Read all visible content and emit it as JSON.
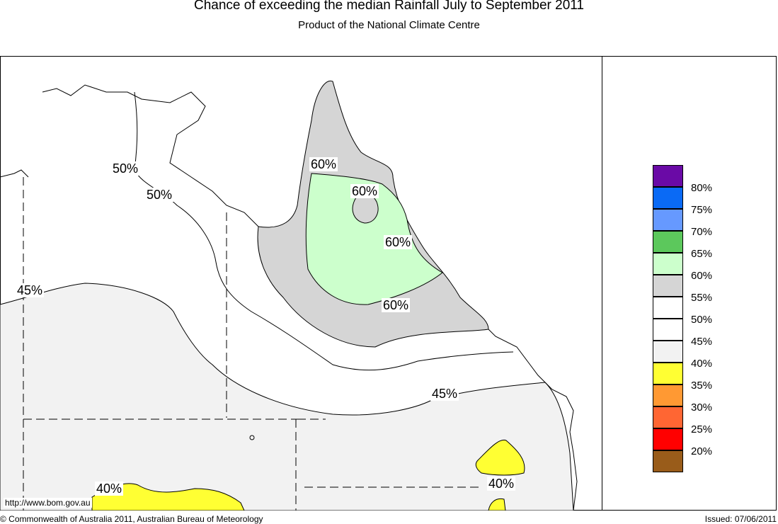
{
  "title": "Chance of exceeding the median Rainfall July to September 2011",
  "subtitle": "Product of the National Climate Centre",
  "url": "http://www.bom.gov.au",
  "copyright": "© Commonwealth of Australia 2011, Australian Bureau of Meteorology",
  "issued": "Issued: 07/06/2011",
  "contour_labels": [
    "50%",
    "50%",
    "45%",
    "60%",
    "60%",
    "60%",
    "60%",
    "45%",
    "40%",
    "40%"
  ],
  "legend": [
    {
      "label": "80%",
      "color": "#6a0aa6"
    },
    {
      "label": "75%",
      "color": "#0a6af5"
    },
    {
      "label": "70%",
      "color": "#6699ff"
    },
    {
      "label": "65%",
      "color": "#5cc85c"
    },
    {
      "label": "60%",
      "color": "#ccffcc"
    },
    {
      "label": "55%",
      "color": "#d5d5d5"
    },
    {
      "label": "50%",
      "color": "#ffffff"
    },
    {
      "label": "45%",
      "color": "#ffffff"
    },
    {
      "label": "40%",
      "color": "#f2f2f2"
    },
    {
      "label": "35%",
      "color": "#ffff33"
    },
    {
      "label": "30%",
      "color": "#ff9933"
    },
    {
      "label": "25%",
      "color": "#ff6633"
    },
    {
      "label": "20%",
      "color": "#ff0000"
    },
    {
      "label": "",
      "color": "#995c1a"
    }
  ]
}
